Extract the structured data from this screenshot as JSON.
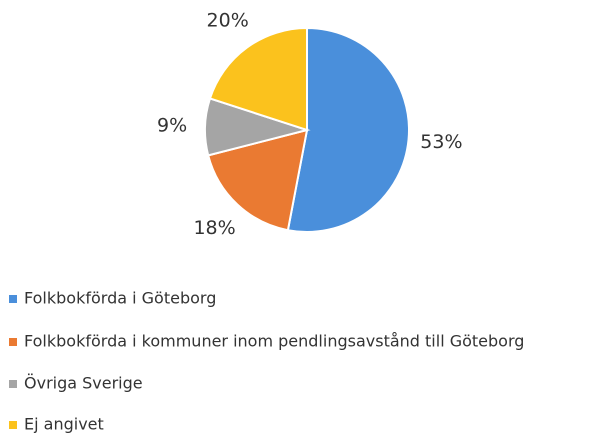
{
  "chart_data": {
    "type": "pie",
    "categories": [
      "Folkbokförda i Göteborg",
      "Folkbokförda i kommuner inom pendlingsavstånd till Göteborg",
      "Övriga Sverige",
      "Ej angivet"
    ],
    "values": [
      53,
      18,
      9,
      20
    ],
    "value_labels": [
      "53%",
      "18%",
      "9%",
      "20%"
    ],
    "colors": [
      "#4a8fdb",
      "#ea7a32",
      "#a5a5a5",
      "#fbc21d"
    ],
    "legend": "bottom"
  }
}
